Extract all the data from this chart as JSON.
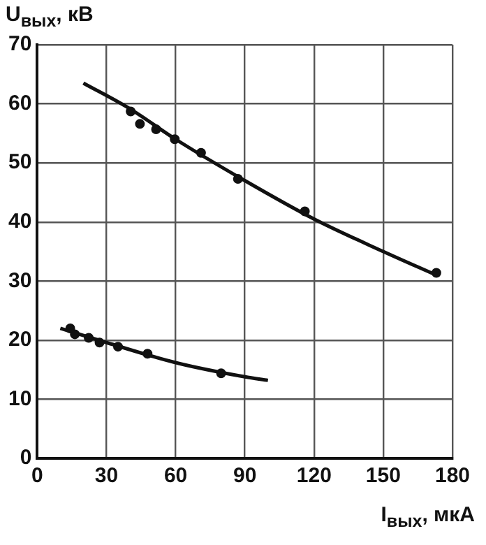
{
  "chart_data": {
    "type": "scatter",
    "xlabel": "I$_{вых}$, мкА",
    "ylabel": "U$_{вых}$, кВ",
    "series": [
      {
        "type": "scatter",
        "color": "#111111",
        "marker": "circle",
        "x": [
          40.5,
          44.5,
          51.5,
          59.6,
          71,
          87,
          116,
          173
        ],
        "values": [
          58.7,
          56.6,
          55.7,
          54,
          51.7,
          47.3,
          41.8,
          31.4
        ]
      },
      {
        "type": "line",
        "color": "#111111",
        "marker": "none",
        "line_style": "solid",
        "x": [
          20,
          40,
          60,
          90,
          120,
          150,
          173
        ],
        "values": [
          63.5,
          59.2,
          54,
          47,
          40.5,
          35,
          31
        ]
      },
      {
        "type": "scatter",
        "color": "#111111",
        "marker": "circle",
        "x": [
          14.3,
          16.3,
          22.3,
          27,
          35,
          47.8,
          79.7
        ],
        "values": [
          22,
          21,
          20.4,
          19.6,
          18.9,
          17.7,
          14.4
        ]
      },
      {
        "type": "line",
        "color": "#111111",
        "marker": "none",
        "line_style": "solid",
        "x": [
          10,
          30,
          60,
          90,
          100
        ],
        "values": [
          22,
          19.6,
          16.2,
          13.8,
          13.2
        ]
      }
    ],
    "xlim": [
      0,
      180
    ],
    "xticks": [
      0,
      30,
      60,
      90,
      120,
      150,
      180
    ],
    "ylim": [
      0,
      70
    ],
    "yticks": [
      0,
      10,
      20,
      30,
      40,
      50,
      60,
      70
    ],
    "grid": true,
    "legend": false
  }
}
